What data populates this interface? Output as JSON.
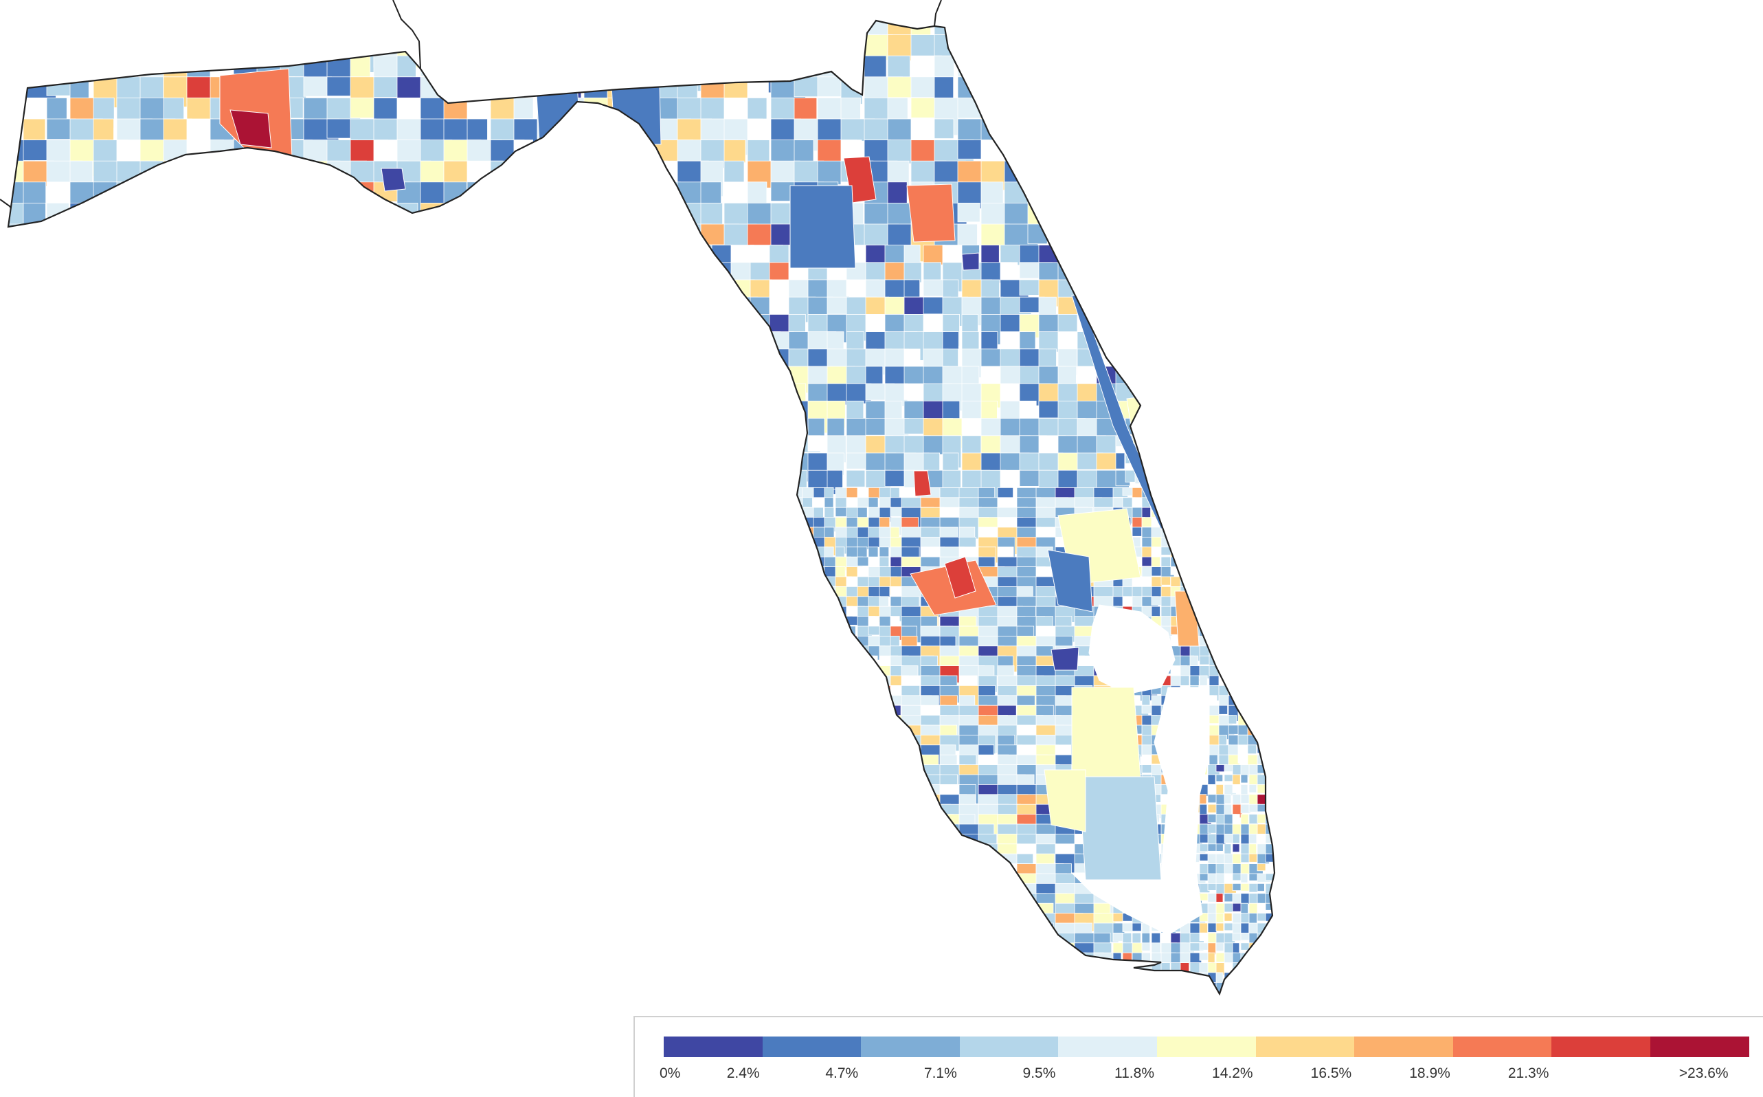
{
  "legend": {
    "colors": [
      "#3f47a3",
      "#4b7bbf",
      "#7eadd6",
      "#b4d6ea",
      "#e1f0f7",
      "#fcfdc4",
      "#fed98c",
      "#fcb06c",
      "#f57a55",
      "#dc3f3a",
      "#ab1334"
    ],
    "labels": [
      "0%",
      "2.4%",
      "4.7%",
      "7.1%",
      "9.5%",
      "11.8%",
      "14.2%",
      "16.5%",
      "18.9%",
      "21.3%",
      ">23.6%"
    ]
  },
  "map": {
    "outline_color": "#222222",
    "no_data_color": "#ffffff"
  }
}
